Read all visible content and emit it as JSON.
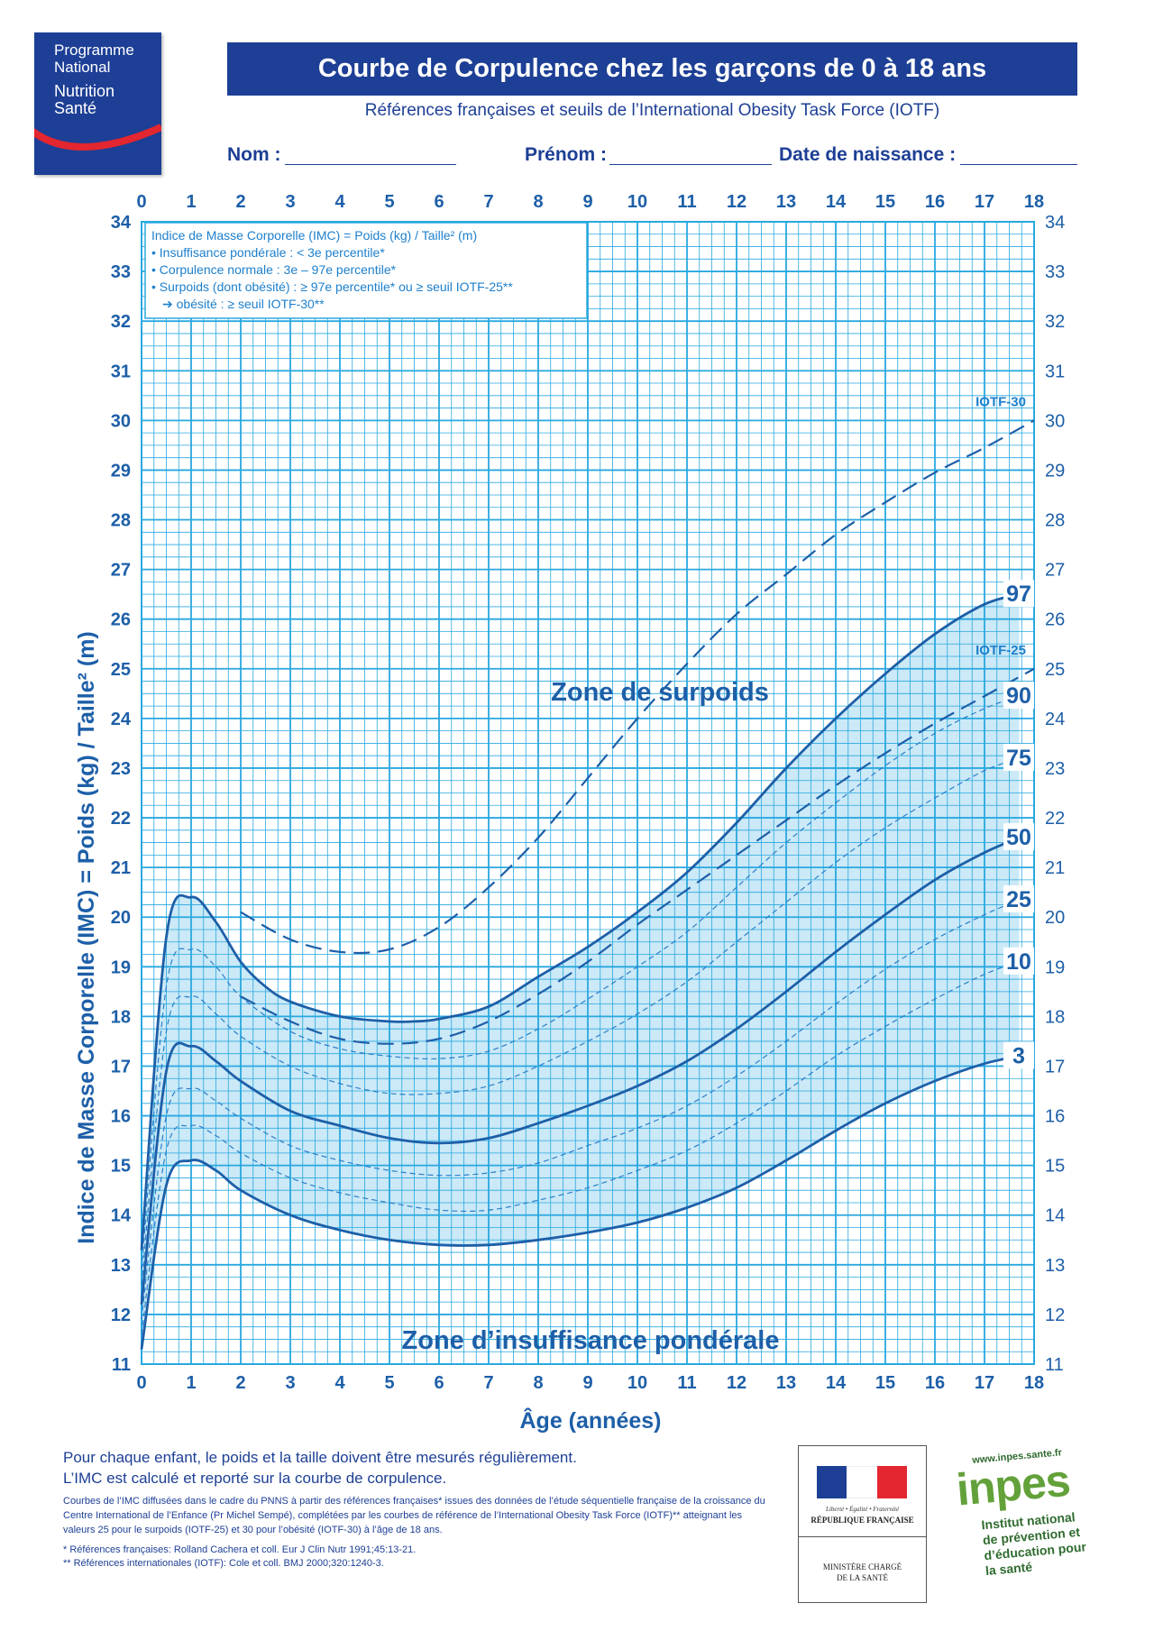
{
  "header": {
    "logo_lines": [
      "Programme",
      "National",
      "Nutrition",
      "Santé"
    ],
    "title": "Courbe de Corpulence chez les garçons de 0 à 18 ans",
    "subtitle": "Références françaises et seuils de l’International Obesity Task Force (IOTF)",
    "fields": [
      "Nom :",
      "Prénom :",
      "Date de naissance :"
    ]
  },
  "chart_data": {
    "type": "line",
    "xlabel": "Âge (années)",
    "ylabel": "Indice de Masse Corporelle (IMC) = Poids (kg) / Taille² (m)",
    "xlim": [
      0,
      18
    ],
    "ylim": [
      11,
      34
    ],
    "x_ticks": [
      0,
      1,
      2,
      3,
      4,
      5,
      6,
      7,
      8,
      9,
      10,
      11,
      12,
      13,
      14,
      15,
      16,
      17,
      18
    ],
    "y_ticks": [
      11,
      12,
      13,
      14,
      15,
      16,
      17,
      18,
      19,
      20,
      21,
      22,
      23,
      24,
      25,
      26,
      27,
      28,
      29,
      30,
      31,
      32,
      33,
      34
    ],
    "grid": true,
    "legend_box": [
      "Indice de Masse Corporelle (IMC) = Poids (kg) / Taille² (m)",
      "• Insuffisance pondérale : < 3e percentile*",
      "• Corpulence normale : 3e – 97e percentile*",
      "• Surpoids (dont obésité) : ≥ 97e percentile* ou ≥ seuil IOTF-25**",
      "➔ obésité : ≥ seuil IOTF-30**"
    ],
    "zone_labels": [
      "Zone de surpoids",
      "Zone d’insuffisance pondérale"
    ],
    "series": [
      {
        "name": "97",
        "style": "solid",
        "x": [
          0,
          0.5,
          1,
          1.5,
          2,
          2.5,
          3,
          4,
          5,
          5.5,
          6,
          7,
          8,
          9,
          10,
          11,
          12,
          13,
          14,
          15,
          16,
          17,
          17.7
        ],
        "values": [
          13.3,
          19.6,
          20.4,
          19.9,
          19.1,
          18.6,
          18.3,
          18.0,
          17.9,
          17.9,
          17.95,
          18.2,
          18.8,
          19.4,
          20.1,
          20.9,
          21.9,
          23.0,
          24.0,
          24.9,
          25.7,
          26.3,
          26.5
        ]
      },
      {
        "name": "90",
        "style": "thin-dashed",
        "x": [
          0,
          0.5,
          1,
          1.5,
          2,
          3,
          4,
          5,
          6,
          7,
          8,
          9,
          10,
          11,
          12,
          13,
          14,
          15,
          16,
          17,
          17.7
        ],
        "values": [
          12.9,
          18.6,
          19.35,
          19.0,
          18.4,
          17.7,
          17.35,
          17.2,
          17.15,
          17.3,
          17.75,
          18.35,
          19.0,
          19.7,
          20.6,
          21.5,
          22.3,
          23.05,
          23.7,
          24.2,
          24.45
        ]
      },
      {
        "name": "75",
        "style": "thin-dashed",
        "x": [
          0,
          0.5,
          1,
          1.5,
          2,
          3,
          4,
          5,
          6,
          7,
          8,
          9,
          10,
          11,
          12,
          13,
          14,
          15,
          16,
          17,
          17.7
        ],
        "values": [
          12.6,
          17.7,
          18.4,
          18.05,
          17.6,
          17.0,
          16.65,
          16.45,
          16.45,
          16.6,
          17.0,
          17.5,
          18.05,
          18.7,
          19.5,
          20.3,
          21.1,
          21.8,
          22.4,
          22.95,
          23.2
        ]
      },
      {
        "name": "50",
        "style": "solid",
        "x": [
          0,
          0.5,
          1,
          1.5,
          2,
          3,
          4,
          5,
          6,
          7,
          8,
          9,
          10,
          11,
          12,
          13,
          14,
          15,
          16,
          17,
          17.7
        ],
        "values": [
          12.2,
          16.9,
          17.4,
          17.1,
          16.7,
          16.1,
          15.8,
          15.55,
          15.45,
          15.55,
          15.85,
          16.2,
          16.6,
          17.1,
          17.75,
          18.5,
          19.3,
          20.05,
          20.75,
          21.3,
          21.6
        ]
      },
      {
        "name": "25",
        "style": "thin-dashed",
        "x": [
          0,
          0.5,
          1,
          1.5,
          2,
          3,
          4,
          5,
          6,
          7,
          8,
          9,
          10,
          11,
          12,
          13,
          14,
          15,
          16,
          17,
          17.7
        ],
        "values": [
          11.9,
          16.0,
          16.55,
          16.3,
          15.95,
          15.4,
          15.1,
          14.9,
          14.8,
          14.85,
          15.05,
          15.4,
          15.75,
          16.2,
          16.8,
          17.5,
          18.25,
          18.95,
          19.55,
          20.05,
          20.35
        ]
      },
      {
        "name": "10",
        "style": "thin-dashed",
        "x": [
          0,
          0.5,
          1,
          1.5,
          2,
          3,
          4,
          5,
          6,
          7,
          8,
          9,
          10,
          11,
          12,
          13,
          14,
          15,
          16,
          17,
          17.7
        ],
        "values": [
          11.6,
          15.3,
          15.8,
          15.6,
          15.25,
          14.75,
          14.45,
          14.25,
          14.1,
          14.1,
          14.3,
          14.55,
          14.9,
          15.3,
          15.85,
          16.5,
          17.2,
          17.8,
          18.35,
          18.85,
          19.1
        ]
      },
      {
        "name": "3",
        "style": "solid",
        "x": [
          0,
          0.5,
          1,
          1.5,
          2,
          3,
          4,
          5,
          6,
          7,
          8,
          9,
          10,
          11,
          12,
          13,
          14,
          15,
          16,
          17,
          17.7
        ],
        "values": [
          11.3,
          14.6,
          15.1,
          14.9,
          14.5,
          14.0,
          13.7,
          13.5,
          13.4,
          13.4,
          13.5,
          13.65,
          13.85,
          14.15,
          14.55,
          15.1,
          15.7,
          16.25,
          16.7,
          17.05,
          17.2
        ]
      },
      {
        "name": "IOTF-30",
        "style": "dashed",
        "x": [
          2,
          3,
          4,
          5,
          6,
          7,
          8,
          9,
          10,
          11,
          12,
          13,
          14,
          15,
          16,
          17,
          18
        ],
        "values": [
          20.1,
          19.55,
          19.3,
          19.35,
          19.8,
          20.6,
          21.6,
          22.8,
          24.0,
          25.1,
          26.1,
          26.9,
          27.7,
          28.35,
          28.95,
          29.45,
          30.0
        ]
      },
      {
        "name": "IOTF-25",
        "style": "dashed",
        "x": [
          2,
          3,
          4,
          5,
          6,
          7,
          8,
          9,
          10,
          11,
          12,
          13,
          14,
          15,
          16,
          17,
          18
        ],
        "values": [
          18.4,
          17.9,
          17.55,
          17.45,
          17.55,
          17.9,
          18.45,
          19.1,
          19.85,
          20.55,
          21.25,
          21.95,
          22.65,
          23.3,
          23.9,
          24.45,
          25.0
        ]
      }
    ]
  },
  "footer": {
    "main": [
      "Pour chaque enfant, le poids et la taille doivent être mesurés régulièrement.",
      "L’IMC est calculé et reporté sur la courbe de corpulence."
    ],
    "small": "Courbes de l’IMC diffusées dans le cadre du PNNS à partir des références françaises* issues des données de l’étude séquentielle française de la croissance du Centre International de l’Enfance (Pr Michel Sempé), complétées par les courbes de référence de l’International Obesity Task Force (IOTF)** atteignant les valeurs 25 pour le surpoids (IOTF-25) et 30 pour l’obésité (IOTF-30) à l’âge de 18 ans.",
    "refs": [
      "* Références françaises: Rolland Cachera et coll. Eur J Clin Nutr 1991;45:13-21.",
      "** Références internationales (IOTF): Cole et coll. BMJ 2000;320:1240-3."
    ]
  },
  "logos": {
    "rf_tagline": "Liberté • Égalité • Fraternité",
    "rf_name": "RÉPUBLIQUE FRANÇAISE",
    "rf_ministry": "MINISTÈRE CHARGÉ\nDE LA SANTÉ",
    "inpes_url": "www.inpes.sante.fr",
    "inpes_name": "inpes",
    "inpes_desc": "Institut national\nde prévention et\nd’éducation pour\nla santé"
  },
  "colors": {
    "navy": "#1d3f95",
    "grid": "#29a8e0",
    "curve": "#1d5fa8",
    "fill": "#d5eefa",
    "band": "#cbe9f7"
  }
}
